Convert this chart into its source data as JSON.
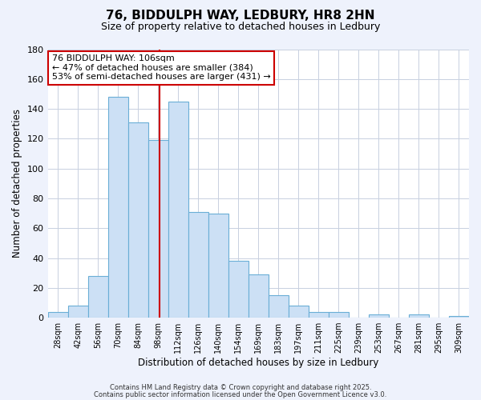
{
  "title": "76, BIDDULPH WAY, LEDBURY, HR8 2HN",
  "subtitle": "Size of property relative to detached houses in Ledbury",
  "xlabel": "Distribution of detached houses by size in Ledbury",
  "ylabel": "Number of detached properties",
  "categories": [
    "28sqm",
    "42sqm",
    "56sqm",
    "70sqm",
    "84sqm",
    "98sqm",
    "112sqm",
    "126sqm",
    "140sqm",
    "154sqm",
    "169sqm",
    "183sqm",
    "197sqm",
    "211sqm",
    "225sqm",
    "239sqm",
    "253sqm",
    "267sqm",
    "281sqm",
    "295sqm",
    "309sqm"
  ],
  "values": [
    4,
    8,
    28,
    148,
    131,
    119,
    145,
    71,
    70,
    38,
    29,
    15,
    8,
    4,
    4,
    0,
    2,
    0,
    2,
    0,
    1
  ],
  "bar_color": "#cce0f5",
  "bar_edge_color": "#6aaed6",
  "vline_color": "#cc0000",
  "ylim": [
    0,
    180
  ],
  "yticks": [
    0,
    20,
    40,
    60,
    80,
    100,
    120,
    140,
    160,
    180
  ],
  "annotation_line1": "76 BIDDULPH WAY: 106sqm",
  "annotation_line2": "← 47% of detached houses are smaller (384)",
  "annotation_line3": "53% of semi-detached houses are larger (431) →",
  "footer1": "Contains HM Land Registry data © Crown copyright and database right 2025.",
  "footer2": "Contains public sector information licensed under the Open Government Licence v3.0.",
  "background_color": "#eef2fc",
  "plot_background": "#ffffff",
  "grid_color": "#c8d0e0",
  "title_fontsize": 11,
  "subtitle_fontsize": 9,
  "annotation_box_edge": "#cc0000",
  "annotation_fontsize": 8
}
